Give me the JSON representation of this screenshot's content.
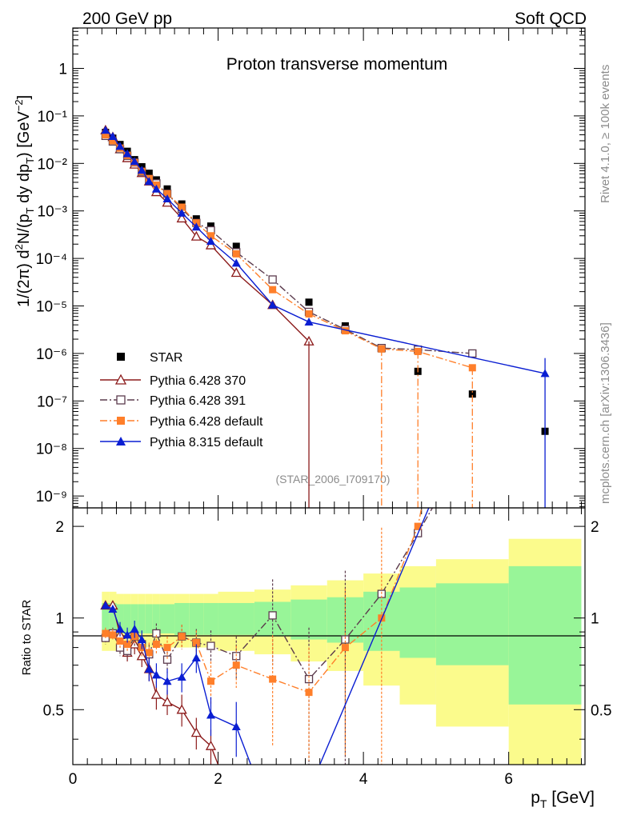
{
  "header": {
    "left_label": "200 GeV pp",
    "right_label": "Soft QCD"
  },
  "side_labels": {
    "rivet": "Rivet 4.1.0, ≥ 100k events",
    "mcplots": "mcplots.cern.ch [arXiv:1306.3436]"
  },
  "chart_data": [
    {
      "type": "scatter",
      "panel": "main",
      "title": "Proton transverse momentum",
      "watermark": "(STAR_2006_I709170)",
      "ylabel": "1/(2π)  d²N/(p_T dy dp_T) [GeV⁻²]",
      "yscale": "log",
      "xlim": [
        0,
        7.05
      ],
      "ylim_log10": [
        -9.25,
        0.85
      ],
      "y_tick_labels": [
        "10⁻⁹",
        "10⁻⁸",
        "10⁻⁷",
        "10⁻⁶",
        "10⁻⁵",
        "10⁻⁴",
        "10⁻³",
        "10⁻²",
        "10⁻¹",
        "1"
      ],
      "legend": [
        "STAR",
        "Pythia 6.428 370",
        "Pythia 6.428 391",
        "Pythia 6.428 default",
        "Pythia 8.315 default"
      ],
      "series": [
        {
          "name": "STAR",
          "color": "#000000",
          "marker": "square-filled",
          "line": "none",
          "x": [
            0.45,
            0.55,
            0.65,
            0.75,
            0.85,
            0.95,
            1.05,
            1.15,
            1.3,
            1.5,
            1.7,
            1.9,
            2.25,
            2.75,
            3.25,
            3.75,
            4.25,
            4.75,
            5.5,
            6.5
          ],
          "y": [
            0.045,
            0.034,
            0.025,
            0.018,
            0.012,
            0.0085,
            0.0062,
            0.0045,
            0.0029,
            0.0014,
            0.00068,
            0.00048,
            0.00018,
            3.6e-05,
            1.2e-05,
            3.8e-06,
            1.25e-06,
            4.2e-07,
            1.4e-07,
            2.3e-08
          ]
        },
        {
          "name": "Pythia 6.428 370",
          "color": "#8b1a1a",
          "marker": "triangle-open",
          "line": "solid",
          "x": [
            0.45,
            0.55,
            0.65,
            0.75,
            0.85,
            0.95,
            1.05,
            1.15,
            1.3,
            1.5,
            1.7,
            1.9,
            2.25,
            2.75,
            3.25
          ],
          "y": [
            0.05,
            0.036,
            0.02,
            0.013,
            0.0095,
            0.0063,
            0.0042,
            0.0025,
            0.0015,
            0.0007,
            0.00029,
            0.00019,
            5e-05,
            1.05e-05,
            1.8e-06
          ]
        },
        {
          "name": "Pythia 6.428 391",
          "color": "#5c3b4d",
          "marker": "square-open",
          "line": "dashdot",
          "x": [
            0.45,
            0.55,
            0.65,
            0.75,
            0.85,
            0.95,
            1.05,
            1.15,
            1.3,
            1.5,
            1.7,
            1.9,
            2.25,
            2.75,
            3.25,
            3.75,
            4.25,
            4.75,
            5.5
          ],
          "y": [
            0.038,
            0.029,
            0.02,
            0.0145,
            0.0105,
            0.0067,
            0.0047,
            0.0038,
            0.0023,
            0.0011,
            0.00056,
            0.00039,
            0.000135,
            3.6e-05,
            7.5e-06,
            3.2e-06,
            1.3e-06,
            1.2e-06,
            1e-06
          ]
        },
        {
          "name": "Pythia 6.428 default",
          "color": "#ff7f2a",
          "marker": "square-filled",
          "line": "dashdot",
          "x": [
            0.45,
            0.55,
            0.65,
            0.75,
            0.85,
            0.95,
            1.05,
            1.15,
            1.3,
            1.5,
            1.7,
            1.9,
            2.25,
            2.75,
            3.25,
            3.75,
            4.25,
            4.75,
            5.5
          ],
          "y": [
            0.04,
            0.03,
            0.021,
            0.0148,
            0.0104,
            0.0068,
            0.0048,
            0.0035,
            0.0023,
            0.0012,
            0.00056,
            0.0003,
            0.000125,
            2.2e-05,
            6.8e-06,
            3e-06,
            1.25e-06,
            1.1e-06,
            5e-07
          ]
        },
        {
          "name": "Pythia 8.315 default",
          "color": "#0a1ed2",
          "marker": "triangle-filled",
          "line": "solid",
          "x": [
            0.45,
            0.55,
            0.65,
            0.75,
            0.85,
            0.95,
            1.05,
            1.15,
            1.3,
            1.5,
            1.7,
            1.9,
            2.25,
            2.75,
            3.25,
            6.5
          ],
          "y": [
            0.05,
            0.037,
            0.023,
            0.016,
            0.011,
            0.0072,
            0.0042,
            0.0029,
            0.0018,
            0.0009,
            0.00046,
            0.00023,
            8e-05,
            1.05e-05,
            4.6e-06,
            3.8e-07
          ]
        }
      ]
    },
    {
      "type": "scatter",
      "panel": "ratio",
      "ylabel": "Ratio to STAR",
      "xlabel": "p_T [GeV]",
      "xlim": [
        0,
        7.05
      ],
      "ylim": [
        0.33,
        2.3
      ],
      "y_tick_labels": [
        "0.5",
        "1",
        "2"
      ],
      "x_tick_labels": [
        "0",
        "2",
        "4",
        "6"
      ],
      "bands": {
        "edges": [
          0.4,
          0.5,
          0.6,
          0.7,
          0.8,
          0.9,
          1.0,
          1.1,
          1.2,
          1.4,
          1.6,
          1.8,
          2.0,
          2.5,
          3.0,
          3.5,
          4.0,
          4.5,
          5.0,
          6.0,
          7.0
        ],
        "inner": [
          0.12,
          0.12,
          0.11,
          0.11,
          0.11,
          0.11,
          0.11,
          0.11,
          0.11,
          0.12,
          0.12,
          0.12,
          0.12,
          0.13,
          0.15,
          0.17,
          0.22,
          0.26,
          0.3,
          0.48
        ],
        "outer": [
          0.22,
          0.22,
          0.2,
          0.2,
          0.2,
          0.2,
          0.2,
          0.2,
          0.2,
          0.2,
          0.2,
          0.2,
          0.22,
          0.24,
          0.28,
          0.33,
          0.4,
          0.48,
          0.56,
          0.82
        ],
        "inner_color": "#98f598",
        "outer_color": "#fbfb8c"
      },
      "series": [
        {
          "name": "Pythia 6.428 370",
          "color": "#8b1a1a",
          "marker": "triangle-open",
          "line": "solid",
          "x": [
            0.45,
            0.55,
            0.65,
            0.75,
            0.85,
            0.95,
            1.05,
            1.15,
            1.3,
            1.5,
            1.7,
            1.9,
            2.0
          ],
          "y": [
            1.1,
            1.1,
            0.88,
            0.77,
            0.82,
            0.75,
            0.68,
            0.56,
            0.53,
            0.5,
            0.42,
            0.38,
            0.33
          ],
          "yerr": [
            0.03,
            0.03,
            0.05,
            0.05,
            0.06,
            0.06,
            0.06,
            0.06,
            0.05,
            0.06,
            0.05,
            0.05,
            0
          ]
        },
        {
          "name": "Pythia 6.428 391",
          "color": "#5c3b4d",
          "marker": "square-open",
          "line": "dashdot",
          "x": [
            0.45,
            0.55,
            0.65,
            0.75,
            0.85,
            0.95,
            1.05,
            1.15,
            1.3,
            1.5,
            1.7,
            1.9,
            2.25,
            2.75,
            3.25,
            3.75,
            4.25,
            4.75,
            4.95
          ],
          "y": [
            0.86,
            0.89,
            0.8,
            0.78,
            0.87,
            0.82,
            0.76,
            0.89,
            0.73,
            0.87,
            0.83,
            0.81,
            0.75,
            1.02,
            0.63,
            0.85,
            1.2,
            1.9,
            2.3
          ],
          "yerr": [
            0.04,
            0.04,
            0.05,
            0.05,
            0.06,
            0.06,
            0.06,
            0.07,
            0.07,
            0.08,
            0.09,
            0.1,
            0.12,
            0.32,
            0.3,
            0.58,
            0,
            0,
            0
          ]
        },
        {
          "name": "Pythia 6.428 default",
          "color": "#ff7f2a",
          "marker": "square-filled",
          "line": "dashdot",
          "x": [
            0.45,
            0.55,
            0.65,
            0.75,
            0.85,
            0.95,
            1.05,
            1.15,
            1.3,
            1.5,
            1.7,
            1.9,
            2.25,
            2.75,
            3.25,
            3.75,
            4.25,
            4.75,
            4.8
          ],
          "y": [
            0.89,
            0.88,
            0.84,
            0.82,
            0.87,
            0.8,
            0.77,
            0.82,
            0.8,
            0.87,
            0.83,
            0.62,
            0.7,
            0.63,
            0.57,
            0.8,
            1.0,
            2.0,
            2.3
          ],
          "yerr": [
            0.04,
            0.04,
            0.05,
            0.05,
            0.05,
            0.06,
            0.06,
            0.06,
            0.07,
            0.08,
            0.08,
            0.1,
            0.11,
            0.25,
            0.23,
            0.45,
            0.98,
            0,
            0
          ]
        },
        {
          "name": "Pythia 8.315 default",
          "color": "#0a1ed2",
          "marker": "triangle-filled",
          "line": "solid",
          "x": [
            0.45,
            0.55,
            0.65,
            0.75,
            0.85,
            0.95,
            1.05,
            1.15,
            1.3,
            1.5,
            1.7,
            1.9,
            2.25,
            2.45
          ],
          "y": [
            1.1,
            1.07,
            0.92,
            0.88,
            0.92,
            0.85,
            0.68,
            0.65,
            0.62,
            0.64,
            0.74,
            0.48,
            0.44,
            0.33
          ],
          "yerr": [
            0.03,
            0.03,
            0.05,
            0.05,
            0.06,
            0.06,
            0.06,
            0.06,
            0.06,
            0.07,
            0.08,
            0.07,
            0.09,
            0
          ]
        },
        {
          "name": "Pythia 8.315 default high-pT",
          "color": "#0a1ed2",
          "marker": "none",
          "line": "solid",
          "x": [
            3.4,
            4.9
          ],
          "y": [
            0.33,
            2.3
          ],
          "yerr": [
            0,
            0
          ]
        }
      ]
    }
  ]
}
